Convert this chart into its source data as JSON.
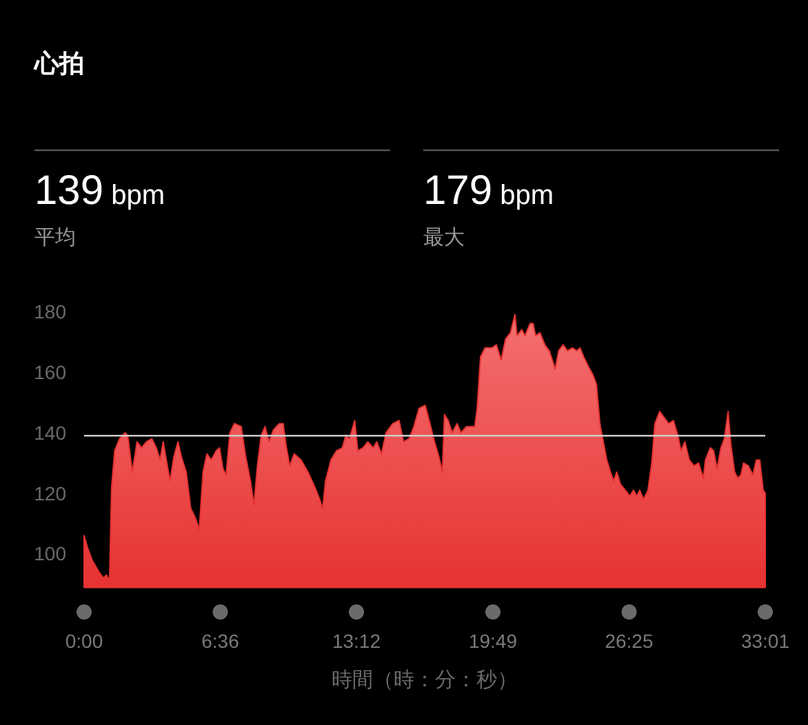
{
  "chart_data": {
    "type": "area",
    "title": "心拍",
    "xlabel": "時間（時：分：秒）",
    "annotations": [
      "139 bpm",
      "平均",
      "179 bpm",
      "最大"
    ],
    "xlim": [
      0,
      1981
    ],
    "xticks": [
      {
        "value": 0,
        "label": "0:00"
      },
      {
        "value": 396,
        "label": "6:36"
      },
      {
        "value": 792,
        "label": "13:12"
      },
      {
        "value": 1189,
        "label": "19:49"
      },
      {
        "value": 1585,
        "label": "26:25"
      },
      {
        "value": 1981,
        "label": "33:01"
      }
    ],
    "ylim": [
      89,
      180
    ],
    "yticks": [
      100,
      120,
      140,
      160,
      180
    ],
    "ref_lines": [
      {
        "axis": "y",
        "value": 139,
        "color": "#cccccc"
      }
    ],
    "x": [
      0,
      10,
      23,
      43,
      56,
      65,
      74,
      80,
      89,
      103,
      119,
      127,
      140,
      154,
      167,
      181,
      197,
      210,
      221,
      230,
      239,
      250,
      261,
      273,
      283,
      297,
      310,
      323,
      335,
      346,
      357,
      370,
      384,
      394,
      404,
      413,
      424,
      437,
      457,
      470,
      484,
      494,
      504,
      515,
      526,
      538,
      551,
      568,
      579,
      587,
      598,
      611,
      631,
      651,
      671,
      685,
      694,
      702,
      718,
      734,
      751,
      761,
      772,
      787,
      796,
      811,
      825,
      841,
      851,
      865,
      878,
      898,
      916,
      929,
      945,
      959,
      974,
      992,
      1006,
      1019,
      1032,
      1042,
      1048,
      1059,
      1070,
      1085,
      1096,
      1112,
      1136,
      1143,
      1153,
      1166,
      1186,
      1199,
      1213,
      1226,
      1240,
      1253,
      1259,
      1273,
      1282,
      1297,
      1306,
      1313,
      1326,
      1340,
      1353,
      1370,
      1380,
      1393,
      1406,
      1420,
      1433,
      1442,
      1453,
      1466,
      1480,
      1490,
      1500,
      1510,
      1520,
      1531,
      1540,
      1549,
      1560,
      1574,
      1587,
      1598,
      1607,
      1616,
      1627,
      1640,
      1651,
      1660,
      1674,
      1687,
      1700,
      1714,
      1727,
      1736,
      1747,
      1760,
      1774,
      1787,
      1801,
      1807,
      1821,
      1831,
      1841,
      1852,
      1862,
      1873,
      1881,
      1892,
      1901,
      1910,
      1918,
      1932,
      1945,
      1955,
      1965,
      1975,
      1981
    ],
    "series": [
      {
        "color": "#e63232",
        "values": [
          106,
          102,
          98,
          94,
          92,
          93,
          91,
          122,
          134,
          138,
          140,
          139,
          127,
          137,
          135,
          137,
          138,
          135,
          131,
          137,
          131,
          124,
          132,
          137,
          132,
          127,
          115,
          112,
          108,
          127,
          133,
          131,
          134,
          135,
          128,
          126,
          140,
          143,
          142,
          132,
          124,
          116,
          129,
          139,
          142,
          137,
          141,
          143,
          143,
          136,
          129,
          133,
          131,
          127,
          122,
          118,
          115,
          124,
          131,
          134,
          135,
          139,
          138,
          144,
          134,
          135,
          137,
          135,
          137,
          133,
          140,
          143,
          144,
          137,
          138,
          142,
          148,
          149,
          143,
          137,
          132,
          127,
          146,
          144,
          140,
          143,
          140,
          142,
          142,
          148,
          165,
          168,
          168,
          169,
          164,
          171,
          173,
          179,
          172,
          174,
          172,
          176,
          176,
          172,
          173,
          169,
          167,
          161,
          167,
          169,
          167,
          168,
          167,
          168,
          165,
          162,
          159,
          156,
          143,
          137,
          131,
          127,
          124,
          127,
          123,
          121,
          119,
          121,
          119,
          121,
          118,
          121,
          130,
          143,
          147,
          145,
          143,
          144,
          139,
          134,
          137,
          131,
          129,
          130,
          125,
          131,
          135,
          134,
          128,
          135,
          138,
          147,
          136,
          127,
          125,
          126,
          130,
          129,
          126,
          131,
          131,
          121,
          120
        ]
      }
    ]
  }
}
